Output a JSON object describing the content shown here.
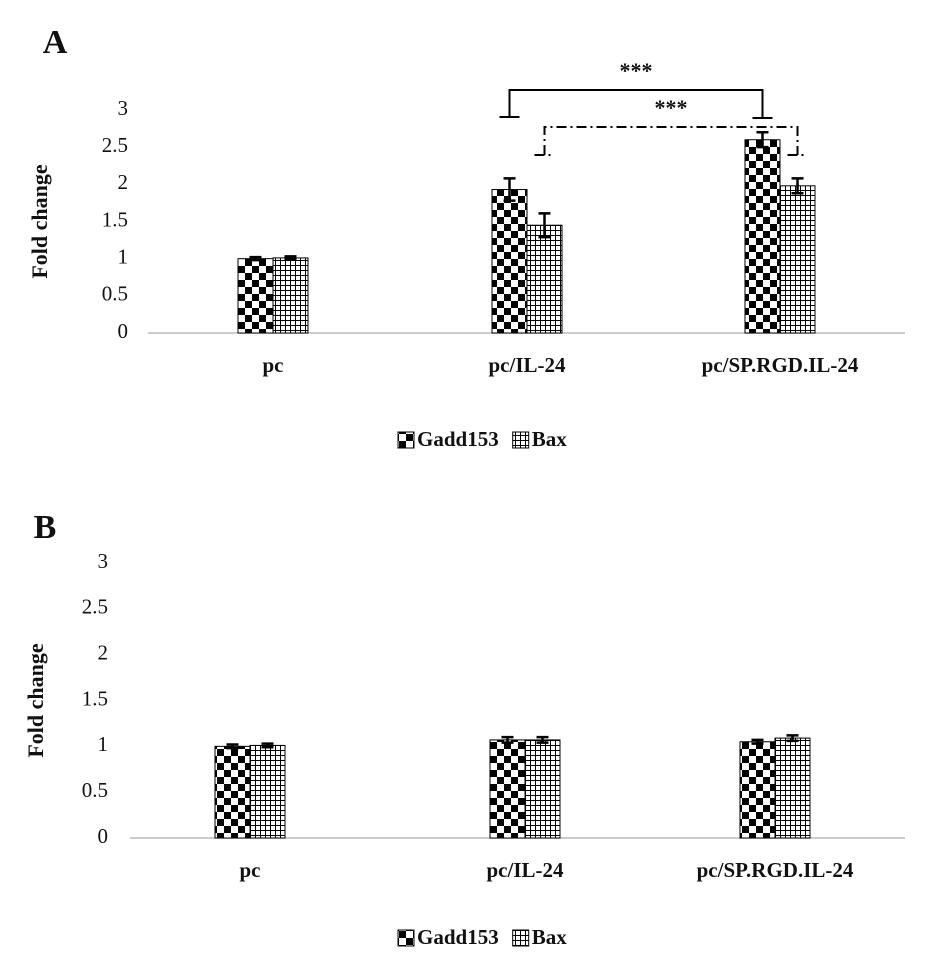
{
  "chart_data": [
    {
      "type": "bar",
      "panel": "A",
      "ylabel": "Fold change",
      "categories": [
        "pc",
        "pc/IL-24",
        "pc/SP.RGD.IL-24"
      ],
      "series": [
        {
          "name": "Gadd153",
          "pattern": "checkerboard",
          "values": [
            1.0,
            1.93,
            2.6
          ],
          "errors": [
            0.02,
            0.15,
            0.1
          ]
        },
        {
          "name": "Bax",
          "pattern": "grid",
          "values": [
            1.01,
            1.45,
            1.98
          ],
          "errors": [
            0.02,
            0.16,
            0.1
          ]
        }
      ],
      "ylim": [
        0,
        3
      ],
      "yticks": [
        0,
        0.5,
        1,
        1.5,
        2,
        2.5,
        3
      ],
      "annotations": [
        "***",
        "***"
      ]
    },
    {
      "type": "bar",
      "panel": "B",
      "ylabel": "Fold change",
      "categories": [
        "pc",
        "pc/IL-24",
        "pc/SP.RGD.IL-24"
      ],
      "series": [
        {
          "name": "Gadd153",
          "pattern": "checkerboard",
          "values": [
            1.0,
            1.07,
            1.05
          ],
          "errors": [
            0.02,
            0.03,
            0.02
          ]
        },
        {
          "name": "Bax",
          "pattern": "grid",
          "values": [
            1.01,
            1.07,
            1.09
          ],
          "errors": [
            0.02,
            0.03,
            0.03
          ]
        }
      ],
      "ylim": [
        0,
        3
      ],
      "yticks": [
        0,
        0.5,
        1,
        1.5,
        2,
        2.5,
        3
      ]
    }
  ]
}
